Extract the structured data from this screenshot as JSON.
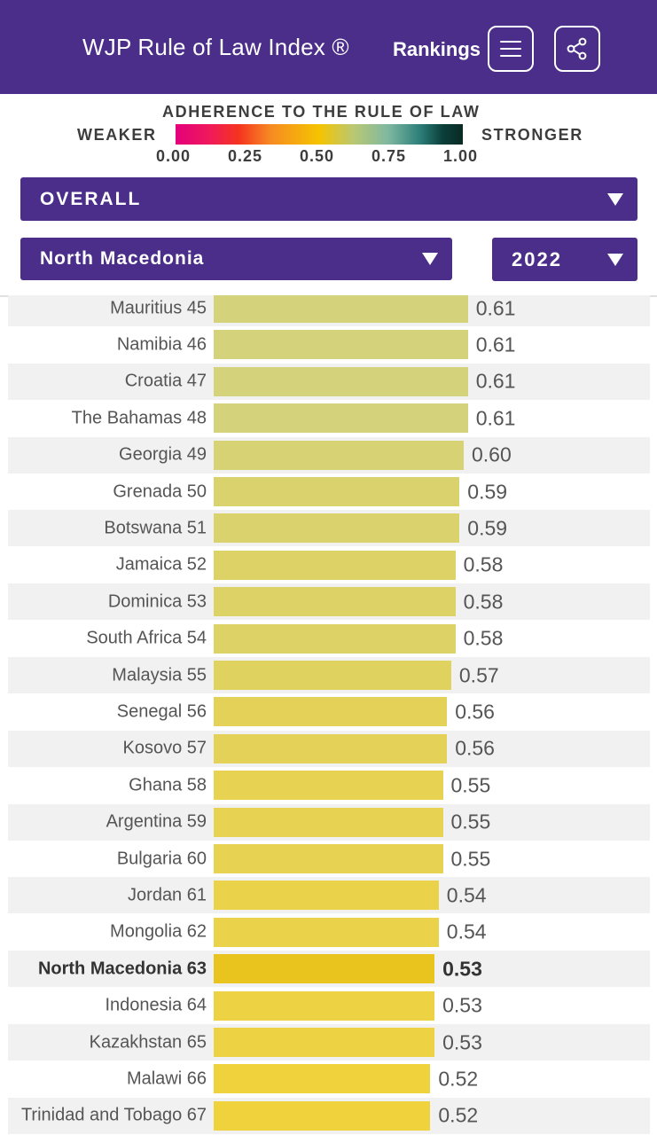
{
  "header": {
    "title": "WJP Rule of Law Index ®",
    "rankings_label": "Rankings",
    "menu_icon": "hamburger-menu-icon",
    "share_icon": "share-icon"
  },
  "legend": {
    "heading": "ADHERENCE TO THE RULE OF LAW",
    "weaker": "WEAKER",
    "stronger": "STRONGER",
    "ticks": [
      "0.00",
      "0.25",
      "0.50",
      "0.75",
      "1.00"
    ],
    "gradient_colors": [
      "#e4007c",
      "#f5341f",
      "#f5c400",
      "#7fb8a0",
      "#0a2a24"
    ]
  },
  "filters": {
    "factor": "OVERALL",
    "country": "North Macedonia",
    "year": "2022"
  },
  "selected_country": "North Macedonia",
  "rows": [
    {
      "country": "Mauritius",
      "rank": 45,
      "score": "0.61",
      "value": 0.61
    },
    {
      "country": "Namibia",
      "rank": 46,
      "score": "0.61",
      "value": 0.61
    },
    {
      "country": "Croatia",
      "rank": 47,
      "score": "0.61",
      "value": 0.61
    },
    {
      "country": "The Bahamas",
      "rank": 48,
      "score": "0.61",
      "value": 0.61
    },
    {
      "country": "Georgia",
      "rank": 49,
      "score": "0.60",
      "value": 0.6
    },
    {
      "country": "Grenada",
      "rank": 50,
      "score": "0.59",
      "value": 0.59
    },
    {
      "country": "Botswana",
      "rank": 51,
      "score": "0.59",
      "value": 0.59
    },
    {
      "country": "Jamaica",
      "rank": 52,
      "score": "0.58",
      "value": 0.58
    },
    {
      "country": "Dominica",
      "rank": 53,
      "score": "0.58",
      "value": 0.58
    },
    {
      "country": "South Africa",
      "rank": 54,
      "score": "0.58",
      "value": 0.58
    },
    {
      "country": "Malaysia",
      "rank": 55,
      "score": "0.57",
      "value": 0.57
    },
    {
      "country": "Senegal",
      "rank": 56,
      "score": "0.56",
      "value": 0.56
    },
    {
      "country": "Kosovo",
      "rank": 57,
      "score": "0.56",
      "value": 0.56
    },
    {
      "country": "Ghana",
      "rank": 58,
      "score": "0.55",
      "value": 0.55
    },
    {
      "country": "Argentina",
      "rank": 59,
      "score": "0.55",
      "value": 0.55
    },
    {
      "country": "Bulgaria",
      "rank": 60,
      "score": "0.55",
      "value": 0.55
    },
    {
      "country": "Jordan",
      "rank": 61,
      "score": "0.54",
      "value": 0.54
    },
    {
      "country": "Mongolia",
      "rank": 62,
      "score": "0.54",
      "value": 0.54
    },
    {
      "country": "North Macedonia",
      "rank": 63,
      "score": "0.53",
      "value": 0.53
    },
    {
      "country": "Indonesia",
      "rank": 64,
      "score": "0.53",
      "value": 0.53
    },
    {
      "country": "Kazakhstan",
      "rank": 65,
      "score": "0.53",
      "value": 0.53
    },
    {
      "country": "Malawi",
      "rank": 66,
      "score": "0.52",
      "value": 0.52
    },
    {
      "country": "Trinidad and Tobago",
      "rank": 67,
      "score": "0.52",
      "value": 0.52
    }
  ],
  "colors": {
    "brand": "#4b2e8a",
    "bar_high": "#d4d27a",
    "bar_low": "#f0d23c",
    "bar_selected": "#e9c41e"
  }
}
